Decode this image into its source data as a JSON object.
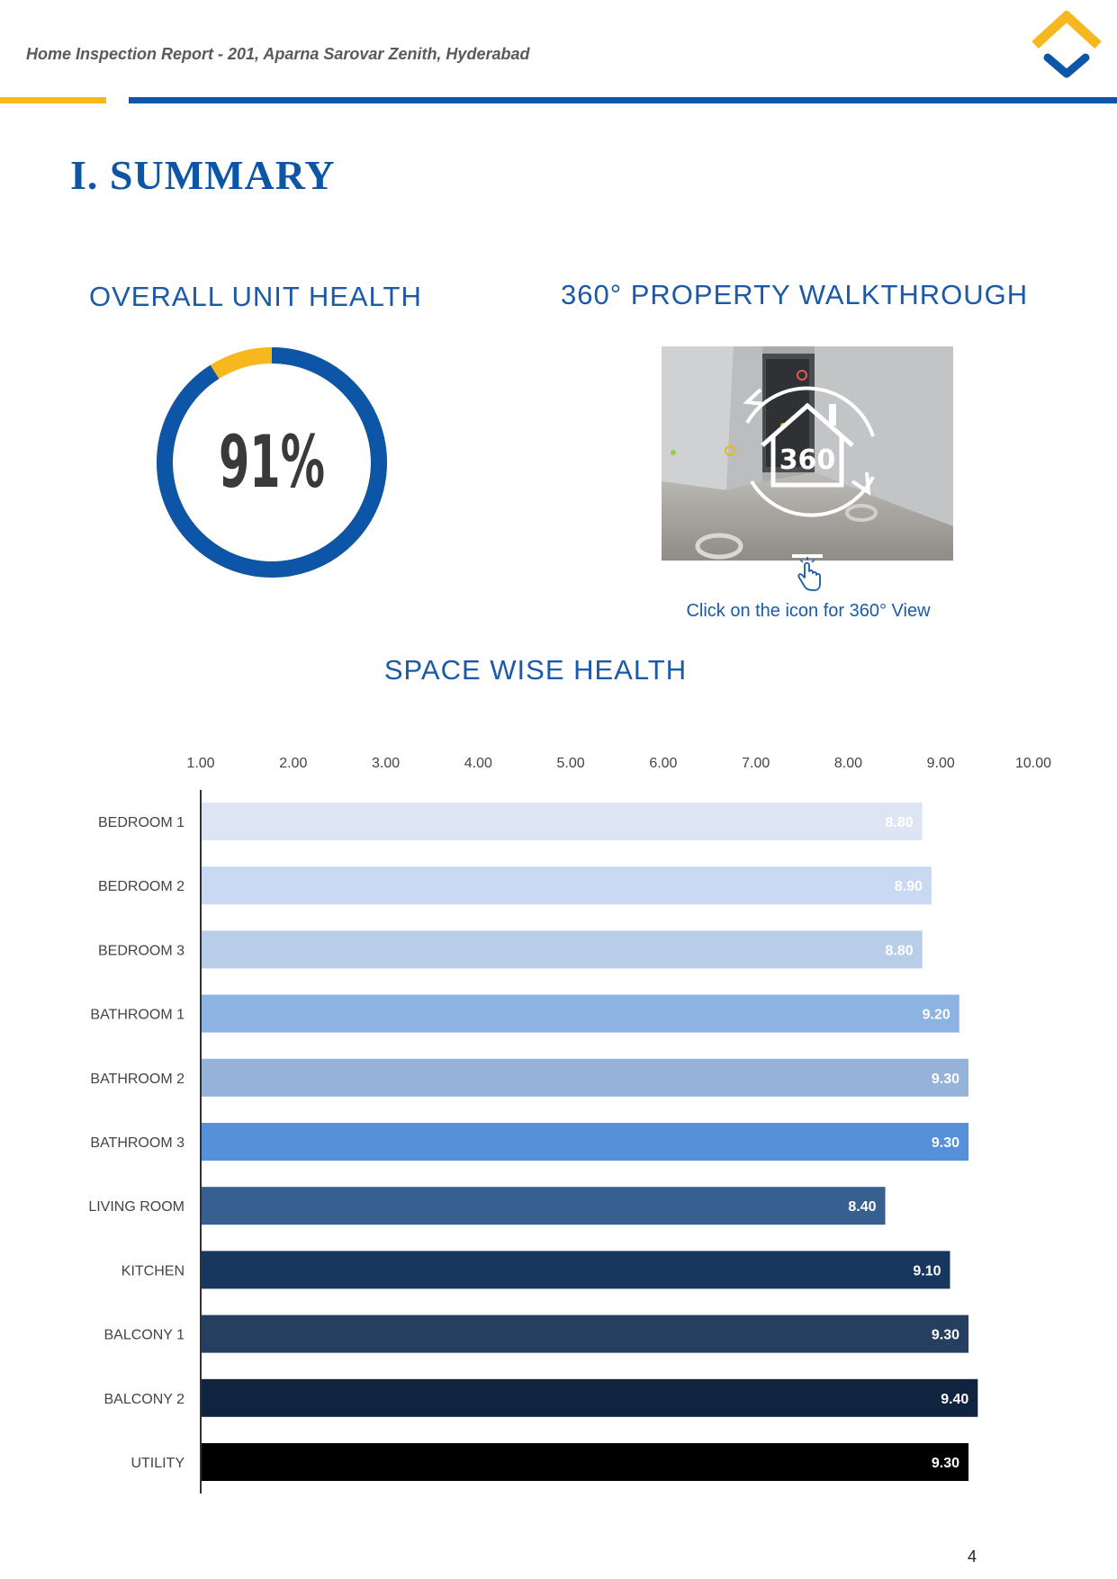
{
  "header": {
    "title": "Home Inspection Report - 201, Aparna Sarovar Zenith, Hyderabad",
    "logo_icon": "house-chevron-logo-icon",
    "accent_yellow": "#f6b81e",
    "accent_blue": "#0d55a6"
  },
  "section": {
    "title": "I. SUMMARY"
  },
  "overall_health": {
    "title": "OVERALL UNIT HEALTH",
    "value_label": "91%",
    "value": 91
  },
  "walkthrough": {
    "title": "360° PROPERTY WALKTHROUGH",
    "badge_text": "360",
    "icon": "360-house-icon",
    "hand_icon": "pointing-hand-icon",
    "note": "Click on the icon for 360° View"
  },
  "space_health": {
    "title": "SPACE WISE HEALTH"
  },
  "chart_data": {
    "type": "bar",
    "orientation": "horizontal",
    "xlim": [
      1,
      10
    ],
    "tick_labels": [
      "1.00",
      "2.00",
      "3.00",
      "4.00",
      "5.00",
      "6.00",
      "7.00",
      "8.00",
      "9.00",
      "10.00"
    ],
    "tick_values": [
      1,
      2,
      3,
      4,
      5,
      6,
      7,
      8,
      9,
      10
    ],
    "categories": [
      "BEDROOM 1",
      "BEDROOM 2",
      "BEDROOM 3",
      "BATHROOM 1",
      "BATHROOM 2",
      "BATHROOM 3",
      "LIVING ROOM",
      "KITCHEN",
      "BALCONY 1",
      "BALCONY 2",
      "UTILITY"
    ],
    "values": [
      8.8,
      8.9,
      8.8,
      9.2,
      9.3,
      9.3,
      8.4,
      9.1,
      9.3,
      9.4,
      9.3
    ],
    "value_labels": [
      "8.80",
      "8.90",
      "8.80",
      "9.20",
      "9.30",
      "9.30",
      "8.40",
      "9.10",
      "9.30",
      "9.40",
      "9.30"
    ],
    "colors": [
      "#dde5f4",
      "#c9d9f1",
      "#b8cde8",
      "#8db3e2",
      "#95b3d9",
      "#5590d8",
      "#376091",
      "#17375e",
      "#243f60",
      "#10243f",
      "#000000"
    ],
    "grid": false,
    "legend": "none"
  },
  "footer": {
    "page_number": "4"
  }
}
